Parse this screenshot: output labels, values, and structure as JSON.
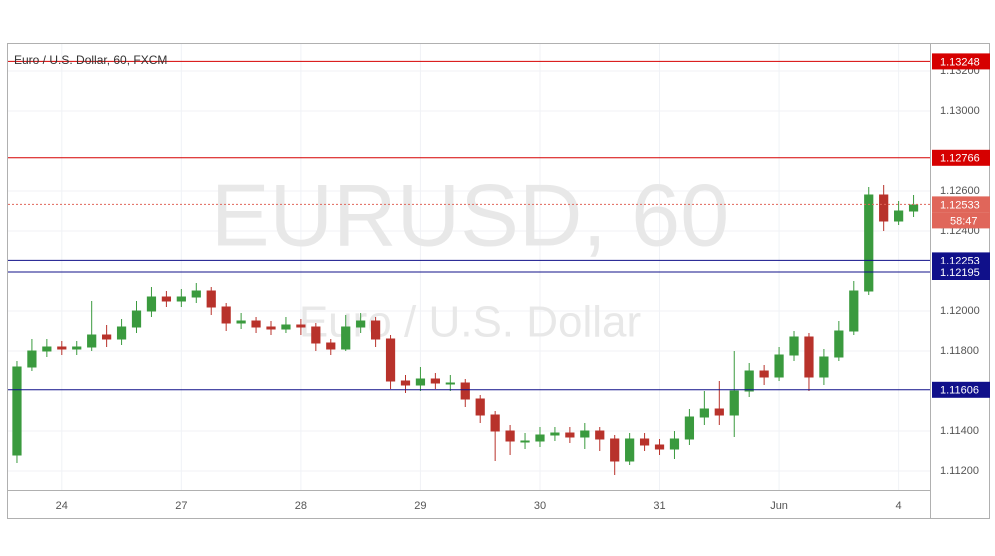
{
  "chart_data": {
    "type": "candlestick",
    "title": "Euro / U.S. Dollar, 60, FXCM",
    "watermark": {
      "symbol": "EURUSD, 60",
      "description": "Euro / U.S. Dollar"
    },
    "x": [
      -9,
      -6,
      -3,
      0,
      3,
      6,
      9,
      12,
      15,
      18,
      21,
      24,
      27,
      30,
      33,
      36,
      39,
      42,
      45,
      48,
      51,
      54,
      57,
      60,
      63,
      66,
      69,
      72,
      75,
      78,
      81,
      84,
      87,
      90,
      93,
      96,
      99,
      102,
      105,
      108,
      111,
      114,
      117,
      120,
      123,
      126,
      129,
      132,
      135,
      138,
      141,
      144,
      147,
      150,
      153,
      156,
      159,
      162,
      165,
      168,
      171
    ],
    "open": [
      1.1128,
      1.1172,
      1.118,
      1.1182,
      1.1181,
      1.1182,
      1.1188,
      1.1186,
      1.1192,
      1.12,
      1.1207,
      1.1205,
      1.1207,
      1.121,
      1.1202,
      1.1194,
      1.1195,
      1.1192,
      1.1191,
      1.1193,
      1.1192,
      1.1184,
      1.1181,
      1.1192,
      1.1195,
      1.1186,
      1.1165,
      1.1163,
      1.1166,
      1.1164,
      1.1164,
      1.1156,
      1.1148,
      1.114,
      1.1135,
      1.1135,
      1.1138,
      1.1139,
      1.1137,
      1.114,
      1.1136,
      1.1125,
      1.1136,
      1.1133,
      1.1131,
      1.1136,
      1.1147,
      1.1151,
      1.1148,
      1.116,
      1.117,
      1.1167,
      1.1178,
      1.1187,
      1.1167,
      1.1177,
      1.119,
      1.121,
      1.1258,
      1.1245,
      1.125
    ],
    "high": [
      1.1175,
      1.1186,
      1.1186,
      1.1185,
      1.1185,
      1.1205,
      1.1193,
      1.1196,
      1.1205,
      1.1212,
      1.121,
      1.1211,
      1.1214,
      1.1212,
      1.1204,
      1.1199,
      1.1197,
      1.1195,
      1.1197,
      1.1196,
      1.1194,
      1.1186,
      1.1198,
      1.1199,
      1.1197,
      1.1188,
      1.1168,
      1.1172,
      1.1169,
      1.1168,
      1.1166,
      1.1158,
      1.115,
      1.1143,
      1.1139,
      1.1142,
      1.1142,
      1.1142,
      1.1144,
      1.1142,
      1.1138,
      1.1139,
      1.1139,
      1.1136,
      1.114,
      1.1151,
      1.116,
      1.1165,
      1.118,
      1.1174,
      1.1173,
      1.1182,
      1.119,
      1.1189,
      1.1181,
      1.1195,
      1.1215,
      1.1262,
      1.1263,
      1.1255,
      1.1258
    ],
    "low": [
      1.1124,
      1.117,
      1.1177,
      1.1178,
      1.1178,
      1.118,
      1.1182,
      1.1183,
      1.1189,
      1.1197,
      1.1202,
      1.1202,
      1.1204,
      1.1198,
      1.119,
      1.1191,
      1.1189,
      1.1188,
      1.1189,
      1.1188,
      1.118,
      1.1178,
      1.118,
      1.1189,
      1.1182,
      1.1161,
      1.1159,
      1.116,
      1.1161,
      1.116,
      1.1152,
      1.1144,
      1.1125,
      1.1128,
      1.1131,
      1.1132,
      1.1135,
      1.1134,
      1.1131,
      1.113,
      1.1118,
      1.1123,
      1.113,
      1.1128,
      1.1126,
      1.1133,
      1.1143,
      1.1143,
      1.1137,
      1.1157,
      1.1163,
      1.1165,
      1.1175,
      1.116,
      1.1163,
      1.1175,
      1.1188,
      1.1208,
      1.124,
      1.1243,
      1.1247
    ],
    "close": [
      1.1172,
      1.118,
      1.1182,
      1.1181,
      1.1182,
      1.1188,
      1.1186,
      1.1192,
      1.12,
      1.1207,
      1.1205,
      1.1207,
      1.121,
      1.1202,
      1.1194,
      1.1195,
      1.1192,
      1.1191,
      1.1193,
      1.1192,
      1.1184,
      1.1181,
      1.1192,
      1.1195,
      1.1186,
      1.1165,
      1.1163,
      1.1166,
      1.1164,
      1.1164,
      1.1156,
      1.1148,
      1.114,
      1.1135,
      1.1135,
      1.1138,
      1.1139,
      1.1137,
      1.114,
      1.1136,
      1.1125,
      1.1136,
      1.1133,
      1.1131,
      1.1136,
      1.1147,
      1.1151,
      1.1148,
      1.116,
      1.117,
      1.1167,
      1.1178,
      1.1187,
      1.1167,
      1.1177,
      1.119,
      1.121,
      1.1258,
      1.1245,
      1.125,
      1.1253
    ],
    "up_color": "#3a9a3e",
    "down_color": "#b8322b",
    "xlim": [
      -10.8,
      174.3
    ],
    "xticks": [
      {
        "value": 0,
        "label": "24"
      },
      {
        "value": 24,
        "label": "27"
      },
      {
        "value": 48,
        "label": "28"
      },
      {
        "value": 72,
        "label": "29"
      },
      {
        "value": 96,
        "label": "30"
      },
      {
        "value": 120,
        "label": "31"
      },
      {
        "value": 144,
        "label": "Jun"
      },
      {
        "value": 168,
        "label": "4"
      }
    ],
    "ylim": [
      1.11105,
      1.13335
    ],
    "yticks": [
      {
        "value": 1.132,
        "label": "1.13200"
      },
      {
        "value": 1.13,
        "label": "1.13000"
      },
      {
        "value": 1.126,
        "label": "1.12600"
      },
      {
        "value": 1.124,
        "label": "1.12400"
      },
      {
        "value": 1.12,
        "label": "1.12000"
      },
      {
        "value": 1.118,
        "label": "1.11800"
      },
      {
        "value": 1.114,
        "label": "1.11400"
      },
      {
        "value": 1.112,
        "label": "1.11200"
      }
    ],
    "grid": true,
    "levels": [
      {
        "value": 1.13248,
        "color": "#d60000",
        "line": "solid"
      },
      {
        "value": 1.12766,
        "color": "#d60000",
        "line": "solid"
      },
      {
        "value": 1.12533,
        "color": "#e0665a",
        "line": "dotted",
        "countdown": "58:47"
      },
      {
        "value": 1.12253,
        "color": "#10108a",
        "line": "solid"
      },
      {
        "value": 1.12195,
        "color": "#10108a",
        "line": "solid"
      },
      {
        "value": 1.11606,
        "color": "#10108a",
        "line": "solid"
      }
    ]
  }
}
